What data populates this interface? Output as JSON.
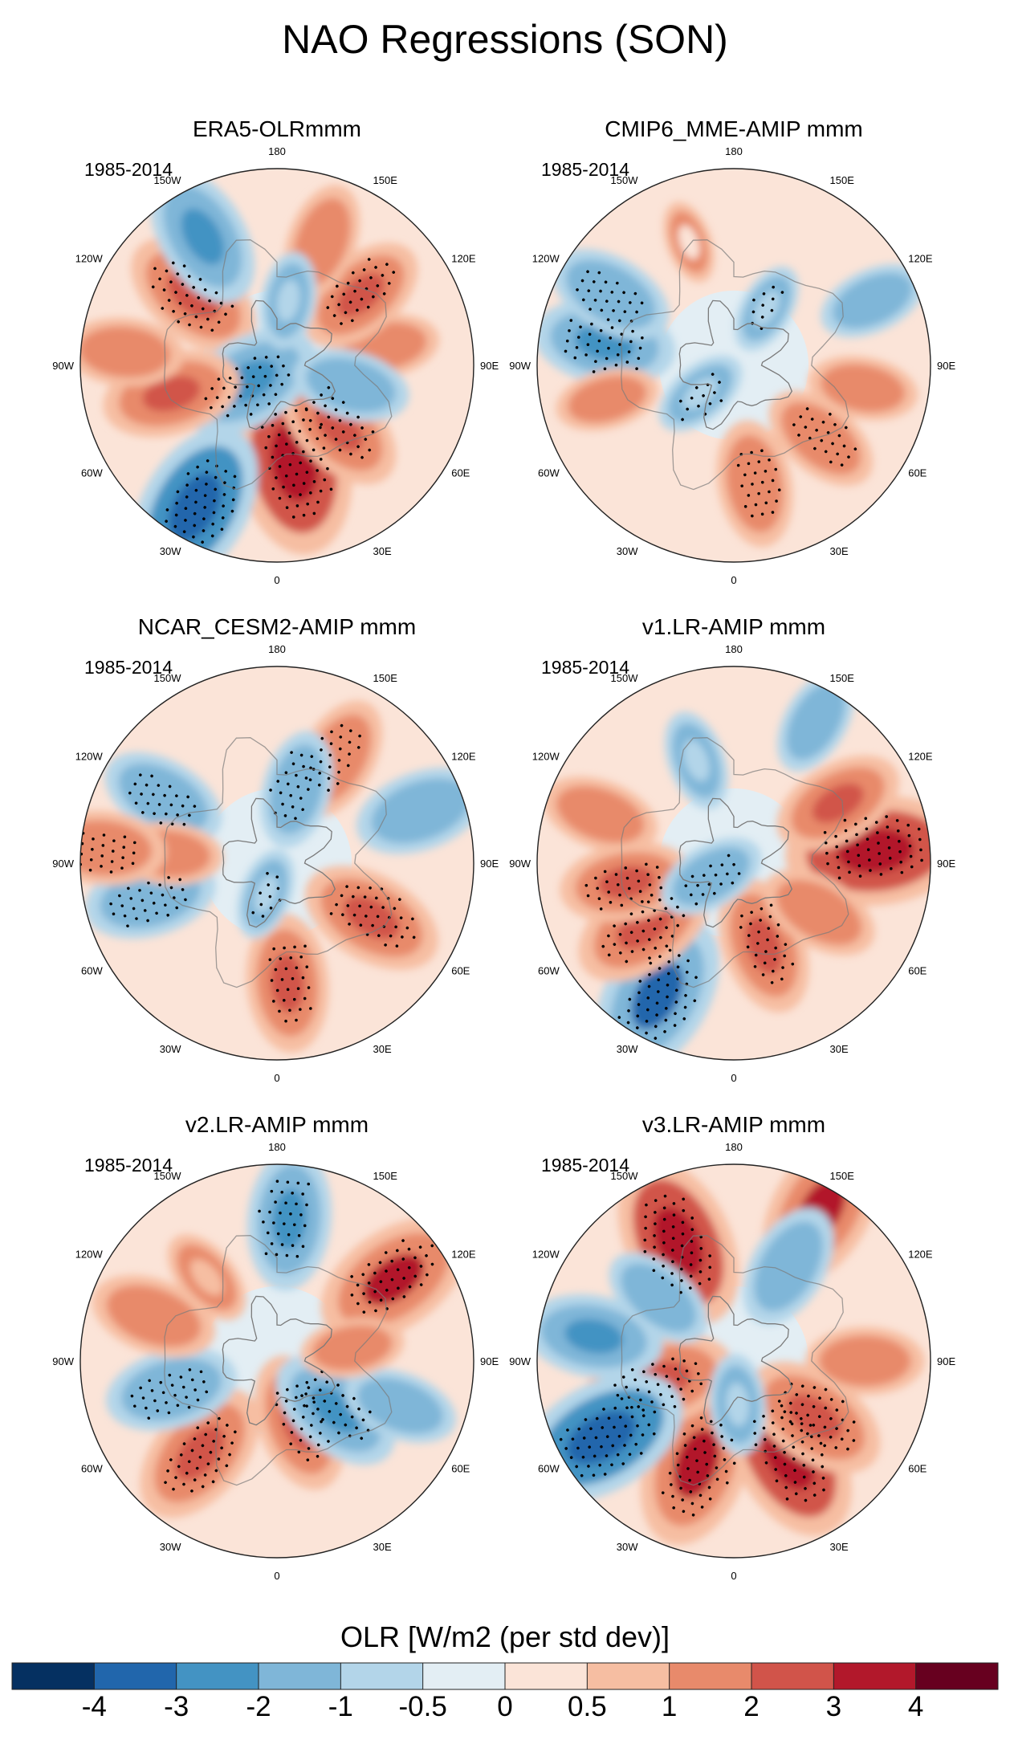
{
  "title": "NAO Regressions (SON)",
  "chart_data": {
    "type": "heatmap",
    "projection": "north polar stereographic",
    "variable": "OLR",
    "period": "1985-2014",
    "lon_labels": [
      "180",
      "150E",
      "120E",
      "90E",
      "60E",
      "30E",
      "0",
      "30W",
      "60W",
      "90W",
      "120W",
      "150W"
    ],
    "panels": [
      {
        "title": "ERA5-OLRmmm",
        "period": "1985-2014",
        "anomalies": [
          {
            "lon": 10,
            "lat": 45,
            "value": 3.8,
            "stippled": true
          },
          {
            "lon": 45,
            "lat": 50,
            "value": 2.2,
            "stippled": true
          },
          {
            "lon": 100,
            "lat": 40,
            "value": 1.2,
            "stippled": false
          },
          {
            "lon": 130,
            "lat": 40,
            "value": 2.0,
            "stippled": true
          },
          {
            "lon": 160,
            "lat": 30,
            "value": 1.5,
            "stippled": false
          },
          {
            "lon": -130,
            "lat": 40,
            "value": 2.4,
            "stippled": true
          },
          {
            "lon": -150,
            "lat": 22,
            "value": -2.4,
            "stippled": false
          },
          {
            "lon": -60,
            "lat": 75,
            "value": -2.5,
            "stippled": true
          },
          {
            "lon": -30,
            "lat": 15,
            "value": -3.4,
            "stippled": true
          },
          {
            "lon": -75,
            "lat": 40,
            "value": 2.2,
            "stippled": false
          },
          {
            "lon": -95,
            "lat": 20,
            "value": 1.5,
            "stippled": false
          },
          {
            "lon": 75,
            "lat": 55,
            "value": -1.5,
            "stippled": false
          },
          {
            "lon": 170,
            "lat": 60,
            "value": -0.8,
            "stippled": false
          }
        ]
      },
      {
        "title": "CMIP6_MME-AMIP  mmm",
        "period": "1985-2014",
        "anomalies": [
          {
            "lon": 10,
            "lat": 35,
            "value": 1.8,
            "stippled": true
          },
          {
            "lon": 50,
            "lat": 38,
            "value": 1.6,
            "stippled": true
          },
          {
            "lon": 80,
            "lat": 30,
            "value": 1.2,
            "stippled": false
          },
          {
            "lon": -100,
            "lat": 30,
            "value": -2.3,
            "stippled": true
          },
          {
            "lon": -120,
            "lat": 25,
            "value": -1.8,
            "stippled": true
          },
          {
            "lon": -50,
            "lat": 70,
            "value": -0.8,
            "stippled": true
          },
          {
            "lon": 150,
            "lat": 60,
            "value": -0.6,
            "stippled": true
          },
          {
            "lon": 115,
            "lat": 20,
            "value": -1.2,
            "stippled": false
          },
          {
            "lon": -160,
            "lat": 30,
            "value": 0.3,
            "stippled": false
          },
          {
            "lon": -75,
            "lat": 30,
            "value": 1.0,
            "stippled": false
          }
        ]
      },
      {
        "title": "NCAR_CESM2-AMIP  mmm",
        "period": "1985-2014",
        "anomalies": [
          {
            "lon": 5,
            "lat": 35,
            "value": 2.2,
            "stippled": true
          },
          {
            "lon": 60,
            "lat": 40,
            "value": 2.4,
            "stippled": true
          },
          {
            "lon": 150,
            "lat": 35,
            "value": 1.8,
            "stippled": true
          },
          {
            "lon": 165,
            "lat": 55,
            "value": -1.5,
            "stippled": true
          },
          {
            "lon": -75,
            "lat": 30,
            "value": -2.0,
            "stippled": true
          },
          {
            "lon": -120,
            "lat": 30,
            "value": -1.8,
            "stippled": true
          },
          {
            "lon": -95,
            "lat": 40,
            "value": 1.2,
            "stippled": false
          },
          {
            "lon": -95,
            "lat": 10,
            "value": 1.8,
            "stippled": true
          },
          {
            "lon": -20,
            "lat": 75,
            "value": -0.6,
            "stippled": true
          },
          {
            "lon": 110,
            "lat": 20,
            "value": -2.0,
            "stippled": false
          }
        ]
      },
      {
        "title": "v1.LR-AMIP  mmm",
        "period": "1985-2014",
        "anomalies": [
          {
            "lon": -30,
            "lat": 20,
            "value": -3.3,
            "stippled": true
          },
          {
            "lon": -55,
            "lat": 40,
            "value": 2.5,
            "stippled": true
          },
          {
            "lon": -80,
            "lat": 40,
            "value": 2.0,
            "stippled": true
          },
          {
            "lon": 20,
            "lat": 50,
            "value": 2.2,
            "stippled": true
          },
          {
            "lon": 95,
            "lat": 25,
            "value": 3.6,
            "stippled": true
          },
          {
            "lon": 120,
            "lat": 35,
            "value": 2.0,
            "stippled": false
          },
          {
            "lon": 60,
            "lat": 45,
            "value": 1.6,
            "stippled": false
          },
          {
            "lon": -60,
            "lat": 78,
            "value": -1.2,
            "stippled": true
          },
          {
            "lon": -110,
            "lat": 25,
            "value": 1.5,
            "stippled": false
          },
          {
            "lon": 150,
            "lat": 15,
            "value": -1.2,
            "stippled": false
          },
          {
            "lon": -160,
            "lat": 40,
            "value": -0.9,
            "stippled": false
          }
        ]
      },
      {
        "title": "v2.LR-AMIP  mmm",
        "period": "1985-2014",
        "anomalies": [
          {
            "lon": -40,
            "lat": 35,
            "value": 2.6,
            "stippled": true
          },
          {
            "lon": 20,
            "lat": 60,
            "value": 2.2,
            "stippled": true
          },
          {
            "lon": 50,
            "lat": 55,
            "value": -2.2,
            "stippled": true
          },
          {
            "lon": 125,
            "lat": 25,
            "value": 3.0,
            "stippled": true
          },
          {
            "lon": 175,
            "lat": 25,
            "value": -2.3,
            "stippled": true
          },
          {
            "lon": -75,
            "lat": 40,
            "value": -2.0,
            "stippled": true
          },
          {
            "lon": -110,
            "lat": 30,
            "value": 1.8,
            "stippled": false
          },
          {
            "lon": 70,
            "lat": 30,
            "value": -1.4,
            "stippled": false
          },
          {
            "lon": -140,
            "lat": 40,
            "value": 0.9,
            "stippled": false
          },
          {
            "lon": 100,
            "lat": 55,
            "value": 1.0,
            "stippled": false
          }
        ]
      },
      {
        "title": "v3.LR-AMIP  mmm",
        "period": "1985-2014",
        "anomalies": [
          {
            "lon": -20,
            "lat": 40,
            "value": 3.2,
            "stippled": true
          },
          {
            "lon": 30,
            "lat": 40,
            "value": 3.4,
            "stippled": true
          },
          {
            "lon": 55,
            "lat": 45,
            "value": 2.5,
            "stippled": true
          },
          {
            "lon": -75,
            "lat": 55,
            "value": 2.6,
            "stippled": true
          },
          {
            "lon": -60,
            "lat": 20,
            "value": -3.5,
            "stippled": true
          },
          {
            "lon": -155,
            "lat": 30,
            "value": 3.4,
            "stippled": true
          },
          {
            "lon": 150,
            "lat": 10,
            "value": 3.0,
            "stippled": false
          },
          {
            "lon": 150,
            "lat": 40,
            "value": -1.8,
            "stippled": false
          },
          {
            "lon": -100,
            "lat": 25,
            "value": -2.2,
            "stippled": false
          },
          {
            "lon": 90,
            "lat": 30,
            "value": 1.5,
            "stippled": false
          },
          {
            "lon": -130,
            "lat": 45,
            "value": -1.4,
            "stippled": false
          },
          {
            "lon": 5,
            "lat": 70,
            "value": -0.9,
            "stippled": false
          }
        ]
      }
    ],
    "colorbar": {
      "label": "OLR [W/m2 (per std dev)]",
      "levels": [
        -4,
        -3,
        -2,
        -1,
        -0.5,
        0,
        0.5,
        1,
        2,
        3,
        4
      ],
      "tick_labels": [
        "-4",
        "-3",
        "-2",
        "-1",
        "-0.5",
        "0",
        "0.5",
        "1",
        "2",
        "3",
        "4"
      ],
      "colors": [
        "#053061",
        "#2166ac",
        "#4393c3",
        "#7fb6d8",
        "#b3d5e9",
        "#e3eef4",
        "#fbe4d8",
        "#f6bea2",
        "#e88a6b",
        "#d1544a",
        "#b2182b",
        "#67001f"
      ]
    }
  }
}
